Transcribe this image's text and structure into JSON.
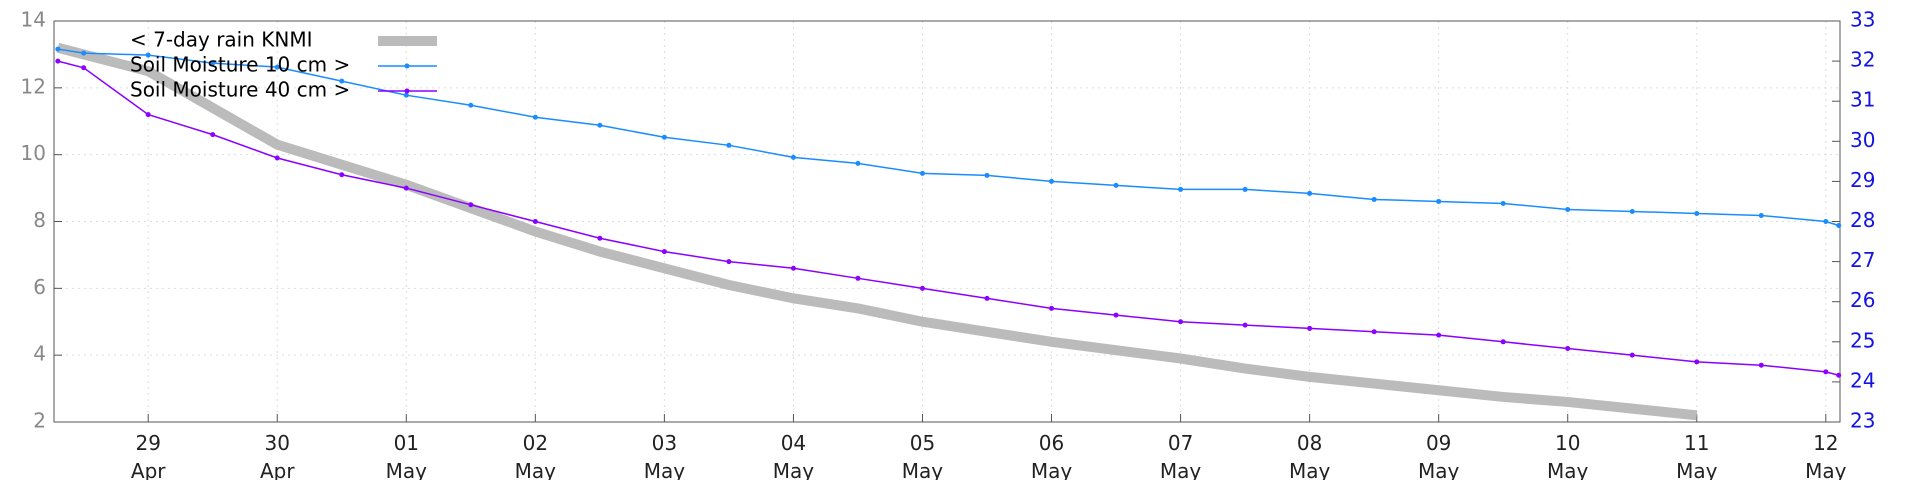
{
  "chart_data": {
    "type": "line",
    "x": [
      -0.7,
      -0.5,
      0,
      0.5,
      1,
      1.5,
      2,
      2.5,
      3,
      3.5,
      4,
      4.5,
      5,
      5.5,
      6,
      6.5,
      7,
      7.5,
      8,
      8.5,
      9,
      9.5,
      10,
      10.5,
      11,
      11.5,
      12,
      12.5,
      13,
      13.1
    ],
    "series": [
      {
        "name": "< 7-day rain KNMI",
        "color": "#bbbbbb",
        "markers": false,
        "values": [
          13.2,
          13.0,
          12.5,
          11.4,
          10.3,
          9.7,
          9.1,
          8.4,
          7.7,
          7.1,
          6.6,
          6.1,
          5.7,
          5.4,
          5.0,
          4.7,
          4.4,
          4.15,
          3.9,
          3.6,
          3.35,
          3.15,
          2.95,
          2.75,
          2.6,
          2.4,
          2.2,
          null,
          null,
          null
        ]
      },
      {
        "name": "Soil Moisture 10 cm >",
        "color": "#1a8cff",
        "axis": "y2",
        "markers": true,
        "values": [
          32.3,
          32.2,
          32.15,
          31.95,
          31.85,
          31.5,
          31.15,
          30.9,
          30.6,
          30.4,
          30.1,
          29.9,
          29.6,
          29.45,
          29.2,
          29.15,
          29.0,
          28.9,
          28.8,
          28.8,
          28.7,
          28.55,
          28.5,
          28.45,
          28.3,
          28.25,
          28.2,
          28.15,
          28.0,
          27.9
        ]
      },
      {
        "name": "Soil Moisture 40 cm >",
        "color": "#8b00ff",
        "markers": true,
        "values": [
          12.8,
          12.6,
          11.2,
          10.6,
          9.9,
          9.4,
          9.0,
          8.5,
          8.0,
          7.5,
          7.1,
          6.8,
          6.6,
          6.3,
          6.0,
          5.7,
          5.4,
          5.2,
          5.0,
          4.9,
          4.8,
          4.7,
          4.6,
          4.4,
          4.2,
          4.0,
          3.8,
          3.7,
          3.5,
          3.4
        ]
      }
    ],
    "xlim": [
      -0.73,
      13.11
    ],
    "xticks": [
      {
        "value": 0,
        "label": "29 Apr"
      },
      {
        "value": 1,
        "label": "30 Apr"
      },
      {
        "value": 2,
        "label": "01 May"
      },
      {
        "value": 3,
        "label": "02 May"
      },
      {
        "value": 4,
        "label": "03 May"
      },
      {
        "value": 5,
        "label": "04 May"
      },
      {
        "value": 6,
        "label": "05 May"
      },
      {
        "value": 7,
        "label": "06 May"
      },
      {
        "value": 8,
        "label": "07 May"
      },
      {
        "value": 9,
        "label": "08 May"
      },
      {
        "value": 10,
        "label": "09 May"
      },
      {
        "value": 11,
        "label": "10 May"
      },
      {
        "value": 12,
        "label": "11 May"
      },
      {
        "value": 13,
        "label": "12 May"
      }
    ],
    "ylim": [
      2,
      14
    ],
    "yticks": [
      2,
      4,
      6,
      8,
      10,
      12,
      14
    ],
    "y2lim": [
      23,
      33
    ],
    "y2ticks": [
      23,
      24,
      25,
      26,
      27,
      28,
      29,
      30,
      31,
      32,
      33
    ],
    "grid": true,
    "legend": "upper left"
  }
}
